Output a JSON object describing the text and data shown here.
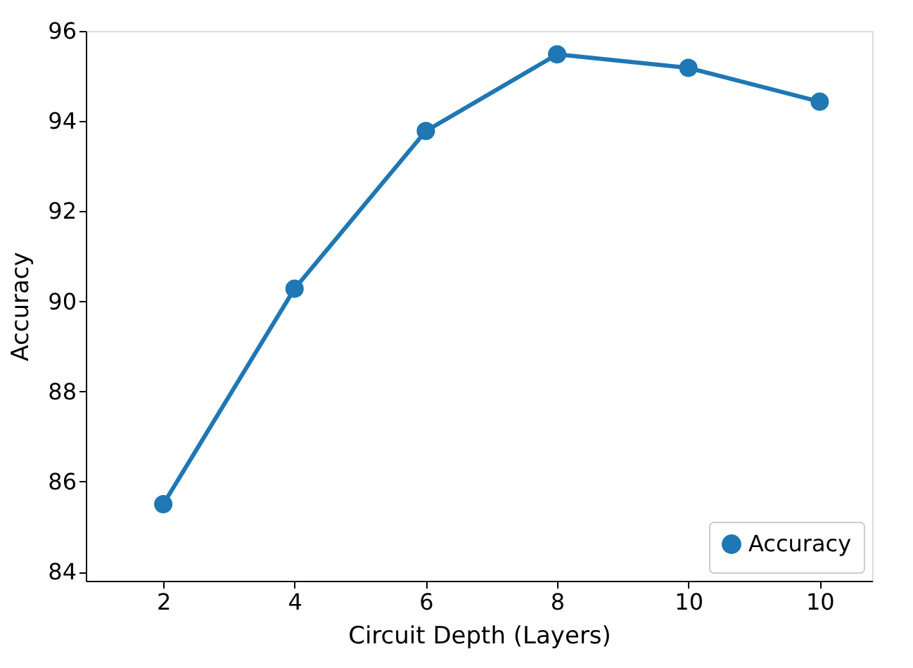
{
  "chart_data": {
    "type": "line",
    "xlabel": "Circuit Depth (Layers)",
    "ylabel": "Accuracy",
    "categories": [
      "2",
      "4",
      "6",
      "8",
      "10",
      "10"
    ],
    "series": [
      {
        "name": "Accuracy",
        "color": "#1f77b4",
        "values": [
          85.5,
          90.28,
          93.78,
          95.48,
          95.18,
          94.43
        ]
      }
    ],
    "ylim": [
      83.8,
      96
    ],
    "yticks": [
      84,
      86,
      88,
      90,
      92,
      94,
      96
    ],
    "grid": false,
    "legend": "bottom right",
    "marker": "circle",
    "line_style": "solid"
  }
}
